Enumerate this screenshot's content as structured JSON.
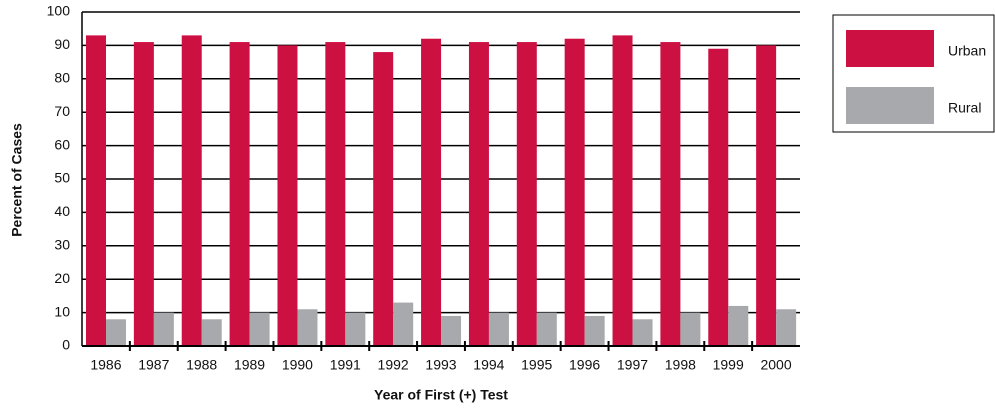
{
  "chart_data": {
    "type": "bar",
    "x_label": "Year of First (+) Test",
    "y_label": "Percent of Cases",
    "categories": [
      "1986",
      "1987",
      "1988",
      "1989",
      "1990",
      "1991",
      "1992",
      "1993",
      "1994",
      "1995",
      "1996",
      "1997",
      "1998",
      "1999",
      "2000"
    ],
    "series": [
      {
        "name": "Urban",
        "color": "#cc1042",
        "values": [
          93,
          91,
          93,
          91,
          90,
          91,
          88,
          92,
          91,
          91,
          92,
          93,
          91,
          89,
          90
        ]
      },
      {
        "name": "Rural",
        "color": "#a7a9ac",
        "values": [
          8,
          10,
          8,
          10,
          11,
          10,
          13,
          9,
          10,
          10,
          9,
          8,
          10,
          12,
          11
        ]
      }
    ],
    "ylim": [
      0,
      100
    ],
    "yticks": [
      0,
      10,
      20,
      30,
      40,
      50,
      60,
      70,
      80,
      90,
      100
    ],
    "grid": true,
    "legend": "right"
  }
}
